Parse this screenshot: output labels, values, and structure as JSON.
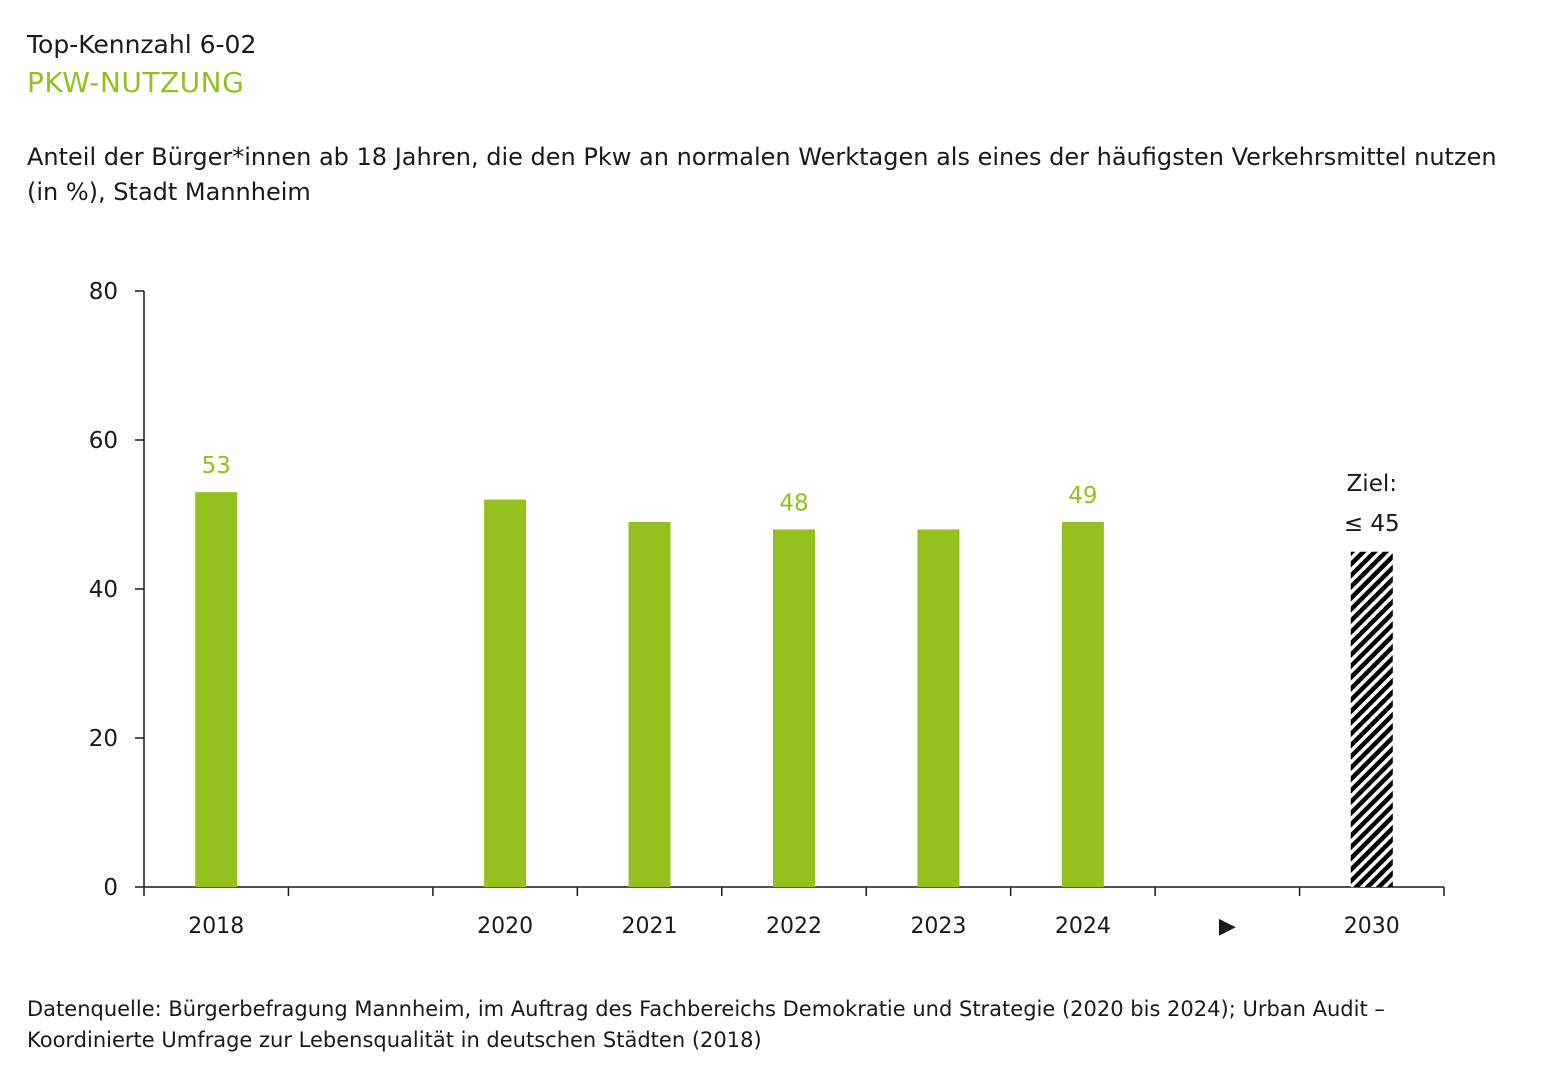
{
  "header": {
    "kennzahl": "Top-Kennzahl 6-02",
    "title": "PKW-NUTZUNG",
    "subtitle": "Anteil der Bürger*innen ab 18 Jahren, die den Pkw an normalen Werktagen als eines der häufigsten Verkehrsmittel nutzen (in %), Stadt Mannheim"
  },
  "footer": {
    "source": "Datenquelle: Bürgerbefragung Mannheim, im Auftrag des Fachbereichs Demokratie und Strategie (2020 bis 2024); Urban Audit – Koordinierte Umfrage zur Lebensqualität in deutschen Städten (2018)"
  },
  "colors": {
    "bar": "#95c11f",
    "label": "#95c11f",
    "target": "#000000"
  },
  "chart_data": {
    "type": "bar",
    "categories": [
      "2018",
      "",
      "2020",
      "2021",
      "2022",
      "2023",
      "2024",
      "▶",
      "2030"
    ],
    "values": [
      53,
      null,
      52,
      49,
      48,
      48,
      49,
      null,
      45
    ],
    "data_labels": [
      "53",
      "",
      "",
      "",
      "48",
      "",
      "49",
      "",
      ""
    ],
    "target": {
      "category": "2030",
      "value": 45,
      "label_line1": "Ziel:",
      "label_line2": "≤ 45",
      "pattern": "diagonal-hatch"
    },
    "ylim": [
      0,
      80
    ],
    "yticks": [
      0,
      20,
      40,
      60,
      80
    ],
    "grid": false,
    "xlabel": "",
    "ylabel": ""
  }
}
